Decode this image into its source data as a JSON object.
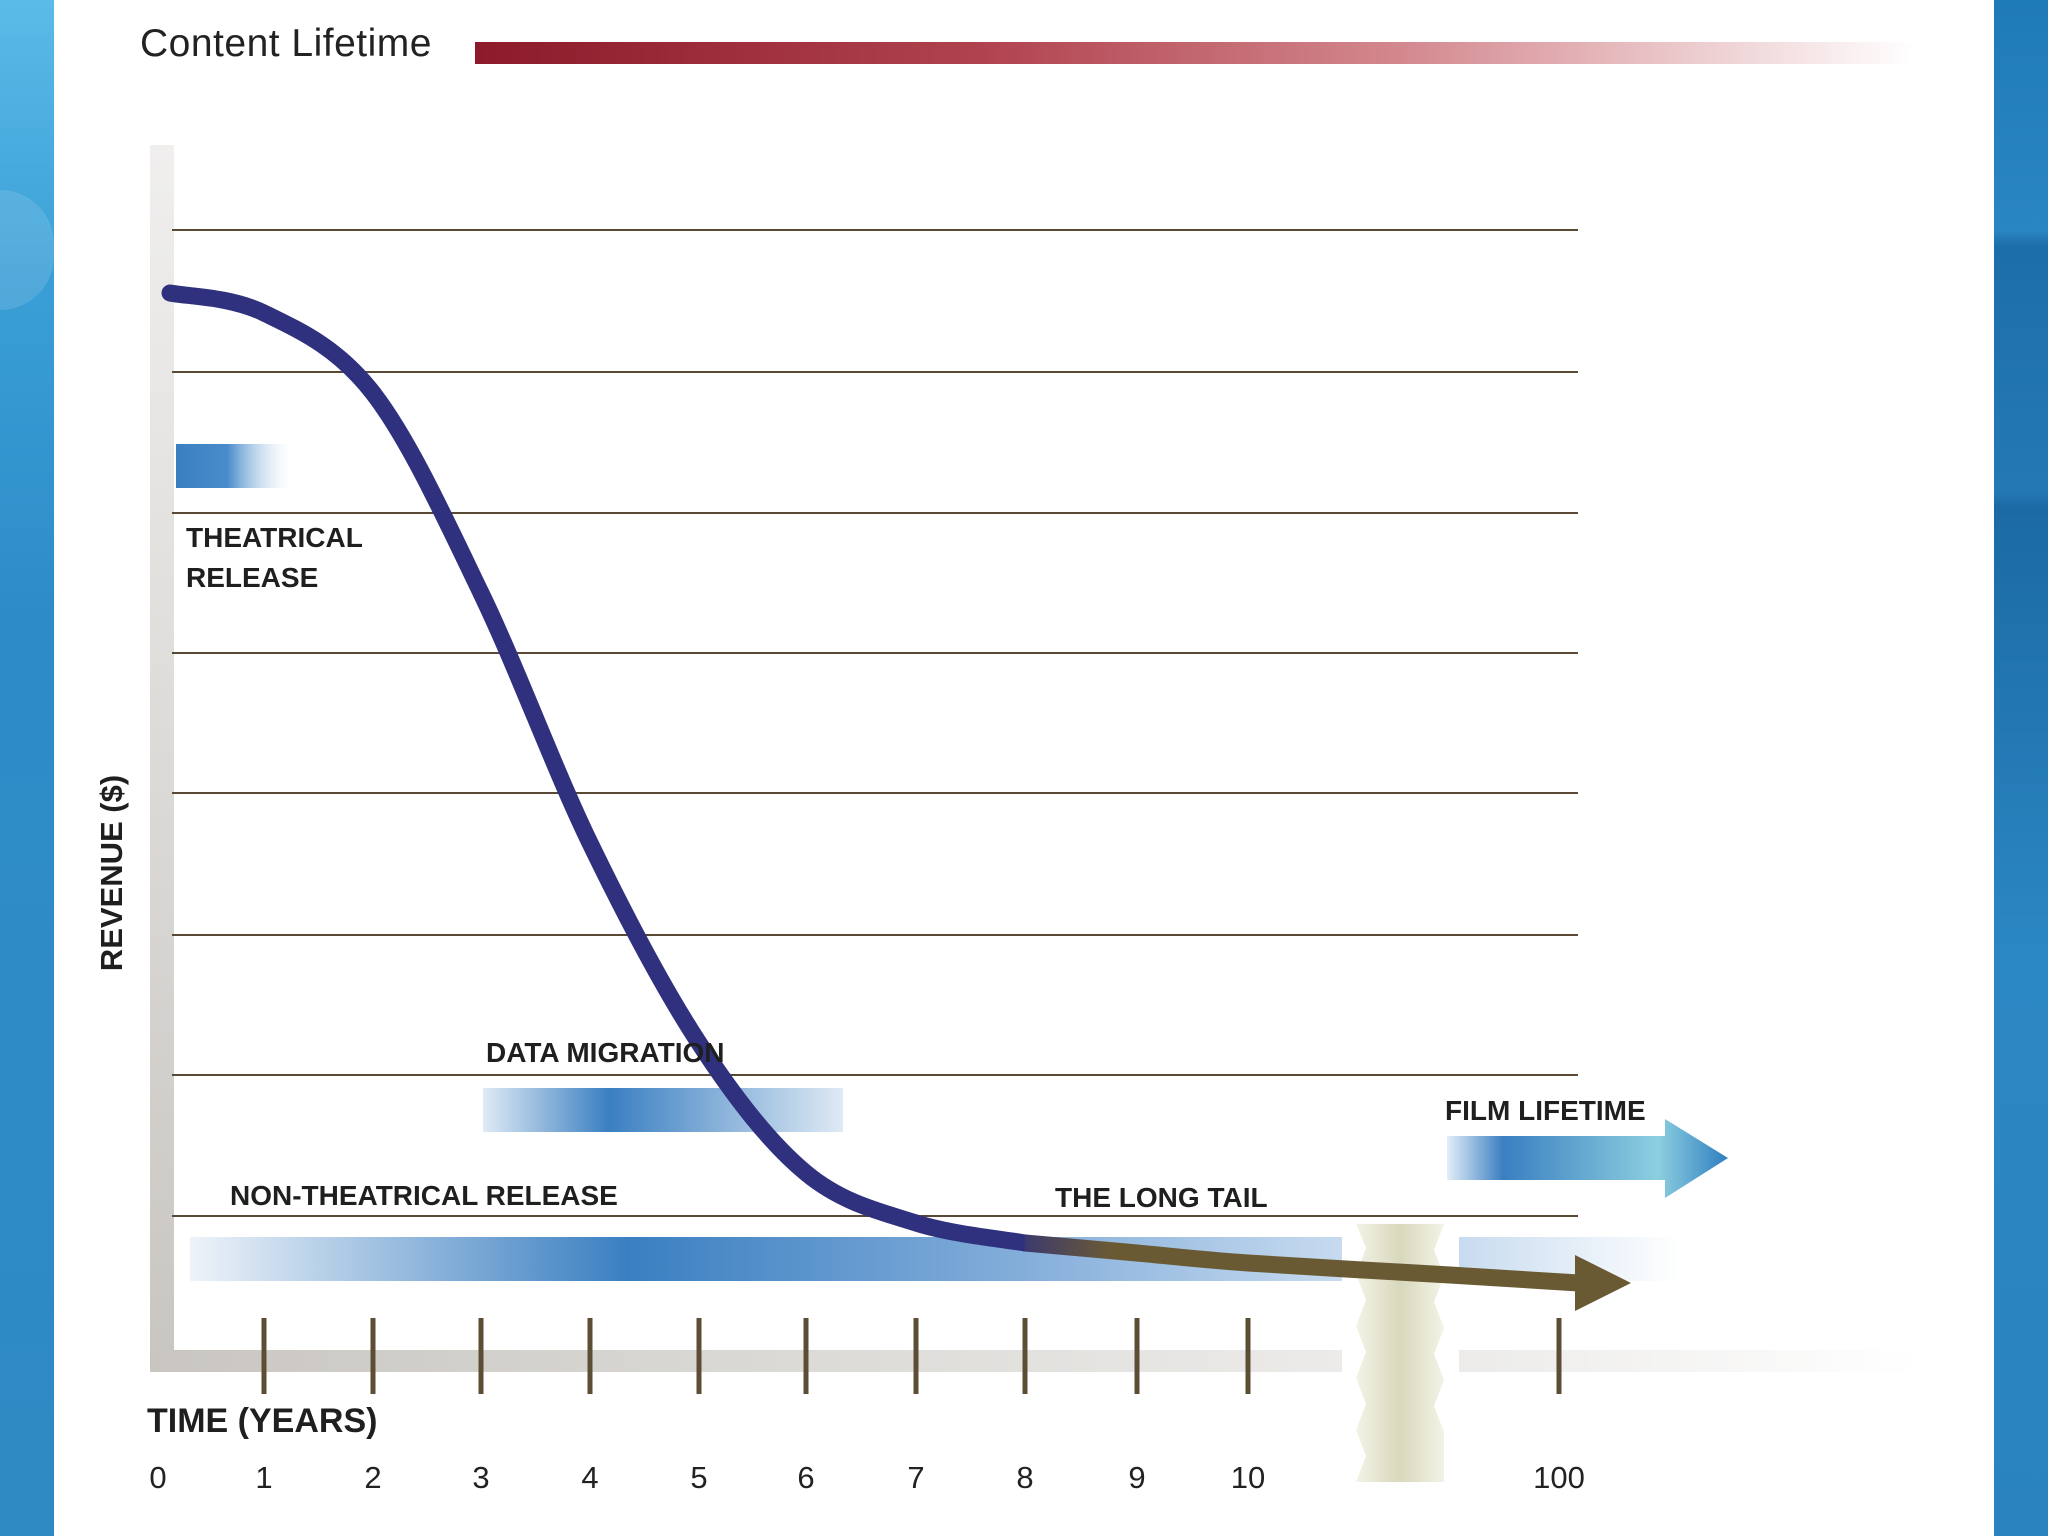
{
  "title": "Content Lifetime",
  "chart_data": {
    "type": "line",
    "title": "Content Lifetime",
    "xlabel": "TIME (YEARS)",
    "ylabel": "REVENUE ($)",
    "x_tick_labels": [
      "0",
      "1",
      "2",
      "3",
      "4",
      "5",
      "6",
      "7",
      "8",
      "9",
      "10",
      "100"
    ],
    "x_axis_break": "between 10 and 100",
    "grid": "horizontal lines, 8",
    "series": [
      {
        "x": [
          0,
          1,
          2,
          3,
          4,
          5,
          6,
          7,
          8,
          9,
          10,
          100
        ],
        "y": [
          100,
          98,
          90,
          70,
          45,
          25,
          12,
          7,
          5,
          4,
          3,
          1
        ],
        "y_units": "relative (unlabeled axis)"
      }
    ],
    "phases": [
      {
        "label_lines": [
          "THEATRICAL",
          "RELEASE"
        ],
        "x_start": 0,
        "x_end": 1
      },
      {
        "label_lines": [
          "DATA MIGRATION"
        ],
        "x_start": 3,
        "x_end": 6
      },
      {
        "label_lines": [
          "NON-THEATRICAL RELEASE"
        ],
        "x_start": 0,
        "x_end": 100
      },
      {
        "label_lines": [
          "THE LONG TAIL"
        ],
        "x_start": 8,
        "x_end": 100
      },
      {
        "label_lines": [
          "FILM LIFETIME"
        ],
        "x_start": 100,
        "x_end": null
      }
    ],
    "colors": {
      "curve": "#2f317e",
      "long_tail": "#6a5a34",
      "bars": "#3a7fc1",
      "grid": "#5a4a35",
      "title_rule": "#8c1a2a"
    }
  }
}
